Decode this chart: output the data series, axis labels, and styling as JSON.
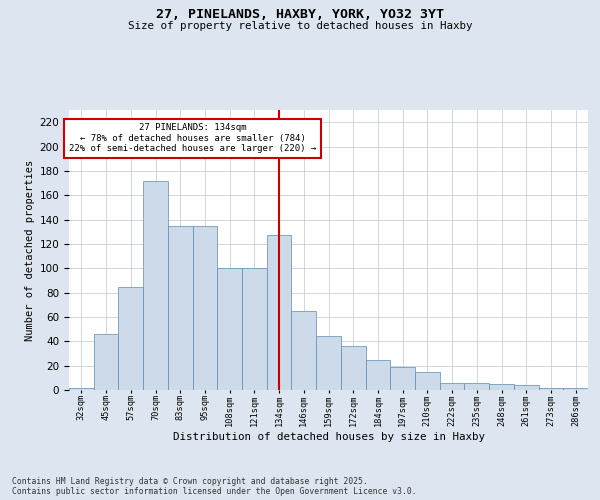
{
  "title": "27, PINELANDS, HAXBY, YORK, YO32 3YT",
  "subtitle": "Size of property relative to detached houses in Haxby",
  "xlabel": "Distribution of detached houses by size in Haxby",
  "ylabel": "Number of detached properties",
  "categories": [
    "32sqm",
    "45sqm",
    "57sqm",
    "70sqm",
    "83sqm",
    "95sqm",
    "108sqm",
    "121sqm",
    "134sqm",
    "146sqm",
    "159sqm",
    "172sqm",
    "184sqm",
    "197sqm",
    "210sqm",
    "222sqm",
    "235sqm",
    "248sqm",
    "261sqm",
    "273sqm",
    "286sqm"
  ],
  "bar_heights": [
    2,
    46,
    85,
    172,
    135,
    135,
    100,
    100,
    127,
    65,
    44,
    36,
    25,
    19,
    15,
    6,
    6,
    5,
    4,
    2,
    2
  ],
  "bar_color": "#ccdaea",
  "bar_edge_color": "#5a8db0",
  "vline_position": 8.0,
  "vline_color": "#cc0000",
  "annotation_text": "27 PINELANDS: 134sqm\n← 78% of detached houses are smaller (784)\n22% of semi-detached houses are larger (220) →",
  "annotation_box_edgecolor": "#cc0000",
  "background_color": "#dde6f0",
  "plot_background": "#ffffff",
  "ylim": [
    0,
    230
  ],
  "yticks": [
    0,
    20,
    40,
    60,
    80,
    100,
    120,
    140,
    160,
    180,
    200,
    220
  ],
  "grid_color": "#b8c8d8",
  "footer": "Contains HM Land Registry data © Crown copyright and database right 2025.\nContains public sector information licensed under the Open Government Licence v3.0."
}
